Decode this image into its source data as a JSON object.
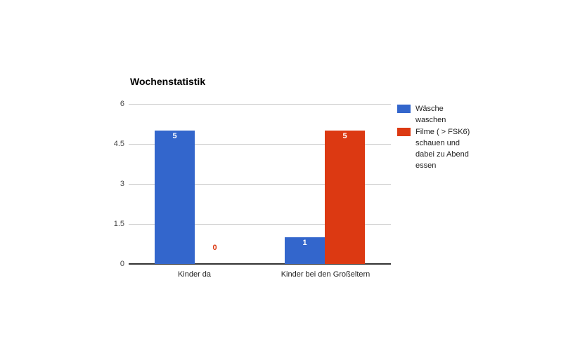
{
  "chart_data": {
    "type": "bar",
    "title": "Wochenstatistik",
    "categories": [
      "Kinder da",
      "Kinder bei den Großeltern"
    ],
    "series": [
      {
        "name": "Wäsche waschen",
        "color": "#3366cc",
        "values": [
          5,
          1
        ],
        "legend_label": "Wäsche\nwaschen"
      },
      {
        "name": "Filme ( > FSK6) schauen und dabei zu Abend essen",
        "color": "#dc3912",
        "values": [
          0,
          5
        ],
        "legend_label": "Filme ( > FSK6)\nschauen und\ndabei zu Abend\nessen"
      }
    ],
    "data_labels": [
      [
        "5",
        "1"
      ],
      [
        "0",
        "5"
      ]
    ],
    "yticks": [
      "6",
      "4.5",
      "3",
      "1.5",
      "0"
    ],
    "ylim": [
      0,
      6
    ],
    "xlabel": "",
    "ylabel": "",
    "grid": true,
    "legend_position": "right",
    "colors": {
      "grid": "#cccccc",
      "axis": "#333333",
      "tick_text": "#444444",
      "title_text": "#000000",
      "background": "#ffffff"
    }
  }
}
